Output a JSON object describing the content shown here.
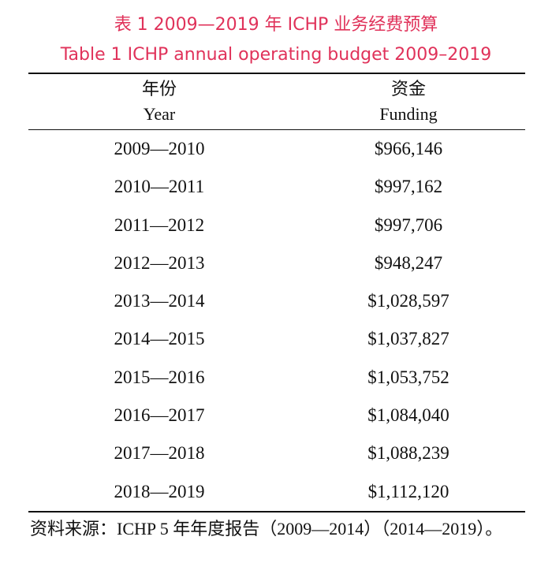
{
  "title": {
    "cn": "表 1  2009—2019 年 ICHP 业务经费预算",
    "en": "Table 1  ICHP annual operating budget 2009–2019"
  },
  "header": {
    "year_cn": "年份",
    "year_en": "Year",
    "funding_cn": "资金",
    "funding_en": "Funding"
  },
  "rows": [
    {
      "year": "2009—2010",
      "funding": "$966,146"
    },
    {
      "year": "2010—2011",
      "funding": "$997,162"
    },
    {
      "year": "2011—2012",
      "funding": "$997,706"
    },
    {
      "year": "2012—2013",
      "funding": "$948,247"
    },
    {
      "year": "2013—2014",
      "funding": "$1,028,597"
    },
    {
      "year": "2014—2015",
      "funding": "$1,037,827"
    },
    {
      "year": "2015—2016",
      "funding": "$1,053,752"
    },
    {
      "year": "2016—2017",
      "funding": "$1,084,040"
    },
    {
      "year": "2017—2018",
      "funding": "$1,088,239"
    },
    {
      "year": "2018—2019",
      "funding": "$1,112,120"
    }
  ],
  "source": "资料来源：ICHP 5 年年度报告（2009—2014）（2014—2019）。",
  "colors": {
    "title": "#e0325a",
    "text": "#111111"
  }
}
